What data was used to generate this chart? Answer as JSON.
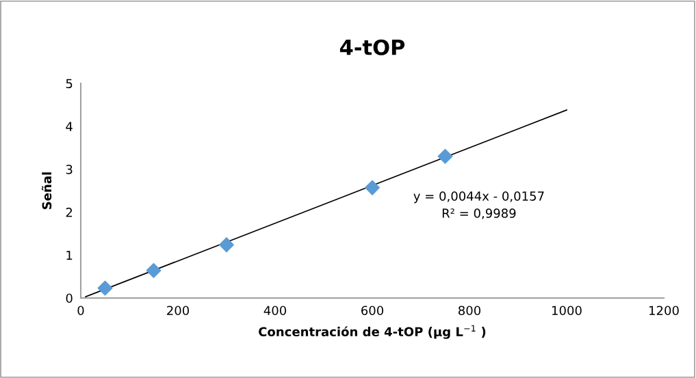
{
  "chart_data": {
    "type": "scatter",
    "title": "4-tOP",
    "xlabel": "Concentración de 4-tOP (µg L$^{−1}$ )",
    "ylabel": "Señal",
    "xlim": [
      0,
      1200
    ],
    "xticks": [
      0,
      200,
      400,
      600,
      800,
      1000,
      1200
    ],
    "ylim": [
      0,
      5
    ],
    "yticks": [
      0,
      1,
      2,
      3,
      4,
      5
    ],
    "grid": false,
    "legend": false,
    "marker": "diamond",
    "series": [
      {
        "color": "#5b9bd5",
        "x": [
          50,
          150,
          300,
          600,
          750
        ],
        "values": [
          0.23,
          0.64,
          1.24,
          2.57,
          3.3
        ]
      },
      {
        "type": "line",
        "color": "#000000",
        "marker": "none",
        "line_style": "solid",
        "x": [
          10,
          1000
        ],
        "values": [
          0.03,
          4.38
        ]
      }
    ],
    "annotations": [
      "y = 0,0044x - 0,0157",
      "R² = 0,9989"
    ]
  }
}
